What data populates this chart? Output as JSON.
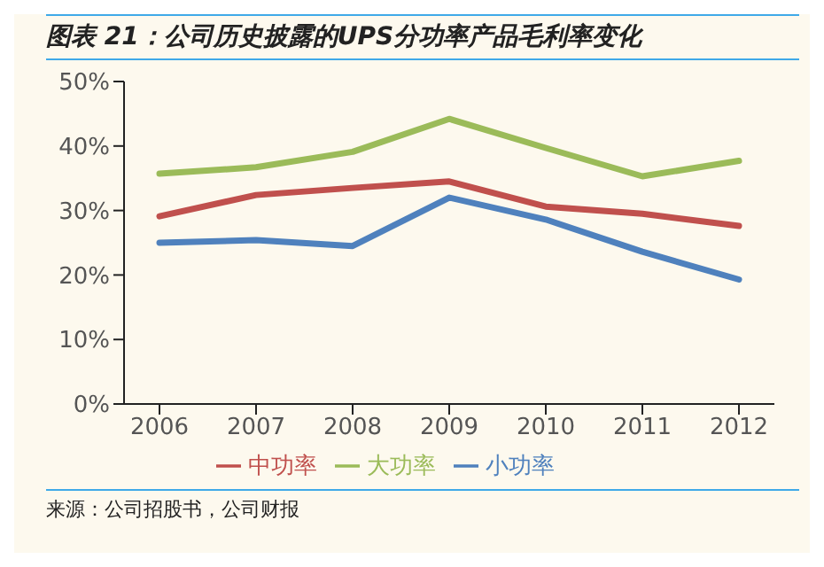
{
  "chart_data": {
    "type": "line",
    "title": "图表 21：公司历史披露的UPS分功率产品毛利率变化",
    "categories": [
      "2006",
      "2007",
      "2008",
      "2009",
      "2010",
      "2011",
      "2012"
    ],
    "series": [
      {
        "name": "小功率",
        "color": "#4f81bd",
        "values": [
          25,
          25.4,
          24.5,
          32,
          28.6,
          23.6,
          19.3
        ]
      },
      {
        "name": "中功率",
        "color": "#c0504d",
        "values": [
          29.1,
          32.4,
          33.5,
          34.5,
          30.6,
          29.5,
          27.6
        ]
      },
      {
        "name": "大功率",
        "color": "#9bbb59",
        "values": [
          35.7,
          36.7,
          39.1,
          44.2,
          39.7,
          35.3,
          37.7
        ]
      }
    ],
    "ylim": [
      0,
      50
    ],
    "yticks": [
      {
        "value": 0,
        "label": "0%"
      },
      {
        "value": 10,
        "label": "10%"
      },
      {
        "value": 20,
        "label": "20%"
      },
      {
        "value": 30,
        "label": "30%"
      },
      {
        "value": 40,
        "label": "40%"
      },
      {
        "value": 50,
        "label": "50%"
      }
    ],
    "grid": false,
    "legend": "bottom",
    "marker": "none",
    "line_style": "solid",
    "annotations": [
      "来源：公司招股书，公司财报"
    ]
  }
}
